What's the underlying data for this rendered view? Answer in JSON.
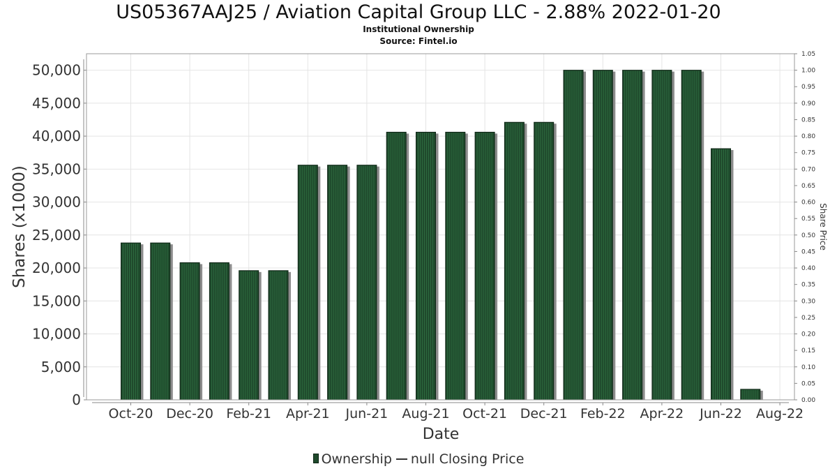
{
  "chart_data": {
    "type": "bar",
    "title": "US05367AAJ25 / Aviation Capital Group LLC - 2.88% 2022-01-20",
    "subtitle1": "Institutional Ownership",
    "subtitle2": "Source: Fintel.io",
    "xlabel": "Date",
    "ylabel": "Shares (x1000)",
    "y2label": "Share Price",
    "ylim": [
      0,
      52500
    ],
    "y2lim": [
      0,
      1.05
    ],
    "yticks": [
      "0",
      "5,000",
      "10,000",
      "15,000",
      "20,000",
      "25,000",
      "30,000",
      "35,000",
      "40,000",
      "45,000",
      "50,000"
    ],
    "y2ticks": [
      "0.00",
      "0.05",
      "0.10",
      "0.15",
      "0.20",
      "0.25",
      "0.30",
      "0.35",
      "0.40",
      "0.45",
      "0.50",
      "0.55",
      "0.60",
      "0.65",
      "0.70",
      "0.75",
      "0.80",
      "0.85",
      "0.90",
      "0.95",
      "1.00",
      "1.05"
    ],
    "xticks": [
      "Oct-20",
      "Dec-20",
      "Feb-21",
      "Apr-21",
      "Jun-21",
      "Aug-21",
      "Oct-21",
      "Dec-21",
      "Feb-22",
      "Apr-22",
      "Jun-22",
      "Aug-22"
    ],
    "grid": true,
    "legend_position": "bottom-center",
    "series": [
      {
        "name": "Ownership",
        "color": "#1f4a2c",
        "values": [
          23800,
          23800,
          20800,
          20800,
          19600,
          19600,
          35600,
          35600,
          35600,
          40600,
          40600,
          40600,
          40600,
          42100,
          42100,
          50000,
          50000,
          50000,
          50000,
          50000,
          38100,
          1600
        ]
      },
      {
        "name": "null Closing Price",
        "color": "#333333",
        "values": []
      }
    ],
    "bar_slot_labels": [
      "Oct-20",
      "Nov-20",
      "Dec-20",
      "Jan-21",
      "Feb-21",
      "Mar-21",
      "Apr-21",
      "May-21",
      "Jun-21",
      "Jul-21",
      "Aug-21",
      "Sep-21",
      "Oct-21",
      "Nov-21",
      "Dec-21",
      "Jan-22",
      "Feb-22",
      "Mar-22",
      "Apr-22",
      "May-22",
      "Jun-22",
      "Jul-22"
    ]
  }
}
